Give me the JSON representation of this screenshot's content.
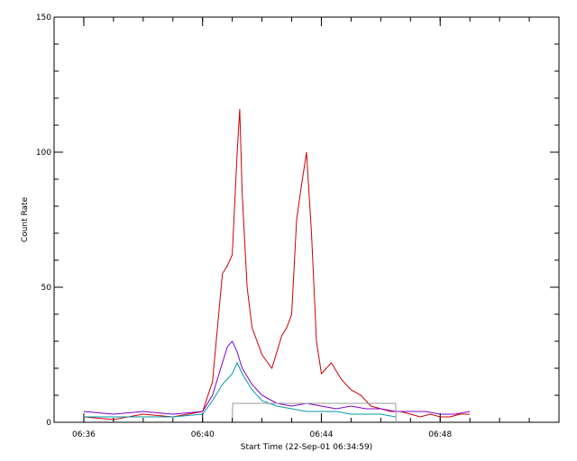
{
  "chart_data": {
    "type": "line",
    "title": "",
    "xlabel": "Start Time (22-Sep-01 06:34:59)",
    "ylabel": "Count Rate",
    "xlim": [
      "06:35:00",
      "06:52:00"
    ],
    "ylim": [
      0,
      150
    ],
    "x_ticks": [
      "06:36",
      "06:40",
      "06:44",
      "06:48"
    ],
    "y_ticks": [
      0,
      50,
      100,
      150
    ],
    "grid": false,
    "legend": "none",
    "colors": {
      "axes": "#000000",
      "background": "#ffffff"
    },
    "series": [
      {
        "color": "#cc0000",
        "x": [
          "06:36:00",
          "06:37:00",
          "06:38:00",
          "06:39:00",
          "06:40:00",
          "06:40:20",
          "06:40:40",
          "06:40:50",
          "06:41:00",
          "06:41:10",
          "06:41:15",
          "06:41:20",
          "06:41:30",
          "06:41:40",
          "06:42:00",
          "06:42:20",
          "06:42:40",
          "06:42:50",
          "06:43:00",
          "06:43:10",
          "06:43:20",
          "06:43:30",
          "06:43:40",
          "06:43:50",
          "06:44:00",
          "06:44:20",
          "06:44:40",
          "06:45:00",
          "06:45:20",
          "06:45:40",
          "06:46:00",
          "06:46:20",
          "06:46:40",
          "06:47:00",
          "06:47:20",
          "06:47:40",
          "06:48:00",
          "06:48:20",
          "06:48:40",
          "06:49:00"
        ],
        "values": [
          2,
          1,
          3,
          2,
          4,
          15,
          55,
          58,
          62,
          100,
          116,
          85,
          50,
          35,
          25,
          20,
          32,
          35,
          40,
          75,
          88,
          100,
          70,
          30,
          18,
          22,
          16,
          12,
          10,
          6,
          5,
          4,
          4,
          3,
          2,
          3,
          2,
          2,
          3,
          3
        ]
      },
      {
        "color": "#7f00cc",
        "x": [
          "06:36:00",
          "06:37:00",
          "06:38:00",
          "06:39:00",
          "06:40:00",
          "06:40:20",
          "06:40:40",
          "06:40:50",
          "06:41:00",
          "06:41:10",
          "06:41:20",
          "06:41:40",
          "06:42:00",
          "06:42:30",
          "06:43:00",
          "06:43:30",
          "06:44:00",
          "06:44:30",
          "06:45:00",
          "06:45:30",
          "06:46:00",
          "06:46:30",
          "06:47:00",
          "06:47:30",
          "06:48:00",
          "06:48:30",
          "06:49:00"
        ],
        "values": [
          4,
          3,
          4,
          3,
          4,
          10,
          22,
          28,
          30,
          26,
          20,
          14,
          10,
          7,
          6,
          7,
          6,
          5,
          6,
          5,
          5,
          4,
          4,
          4,
          3,
          3,
          4
        ]
      },
      {
        "color": "#0099aa",
        "x": [
          "06:36:00",
          "06:37:00",
          "06:38:00",
          "06:39:00",
          "06:40:00",
          "06:40:20",
          "06:40:40",
          "06:41:00",
          "06:41:10",
          "06:41:20",
          "06:41:40",
          "06:42:00",
          "06:42:30",
          "06:43:00",
          "06:43:30",
          "06:44:00",
          "06:44:30",
          "06:45:00",
          "06:45:30",
          "06:46:00",
          "06:46:30"
        ],
        "values": [
          2,
          2,
          2,
          2,
          3,
          8,
          14,
          18,
          22,
          18,
          12,
          8,
          6,
          5,
          4,
          4,
          4,
          3,
          3,
          3,
          2
        ]
      },
      {
        "color": "#999999",
        "x": [
          "06:41:00",
          "06:41:01",
          "06:42:00",
          "06:43:00",
          "06:44:00",
          "06:45:00",
          "06:46:00",
          "06:46:30",
          "06:46:31"
        ],
        "values": [
          0,
          7,
          7,
          7,
          7,
          7,
          7,
          7,
          0
        ]
      }
    ]
  }
}
